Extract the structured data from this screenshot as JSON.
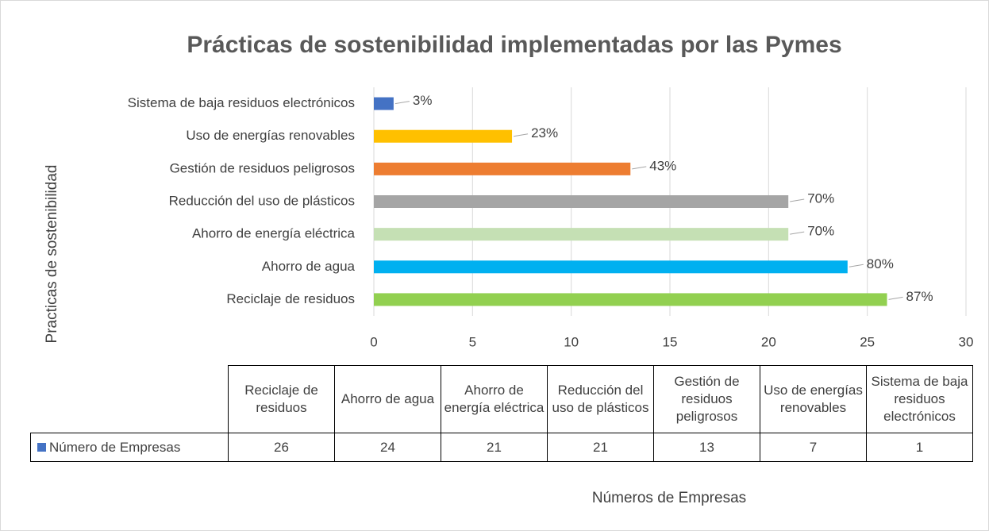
{
  "chart_data": {
    "type": "bar",
    "orientation": "horizontal",
    "title": "Prácticas de sostenibilidad implementadas por las Pymes",
    "y_label": "Practicas de sostenibilidad",
    "x_label": "Números de Empresas",
    "series_name": "Número de Empresas",
    "legend_color": "#4472c4",
    "categories": [
      "Reciclaje de residuos",
      "Ahorro de agua",
      "Ahorro de energía eléctrica",
      "Reducción del uso de plásticos",
      "Gestión de residuos peligrosos",
      "Uso de energías renovables",
      "Sistema de baja residuos electrónicos"
    ],
    "values": [
      26,
      24,
      21,
      21,
      13,
      7,
      1
    ],
    "data_labels": [
      "87%",
      "80%",
      "70%",
      "70%",
      "43%",
      "23%",
      "3%"
    ],
    "colors": [
      "#92d050",
      "#00b0f0",
      "#c5e0b4",
      "#a5a5a5",
      "#ed7d31",
      "#ffc000",
      "#4472c4"
    ],
    "xlim": [
      0,
      30
    ],
    "xticks": [
      0,
      5,
      10,
      15,
      20,
      25,
      30
    ],
    "grid": true
  }
}
